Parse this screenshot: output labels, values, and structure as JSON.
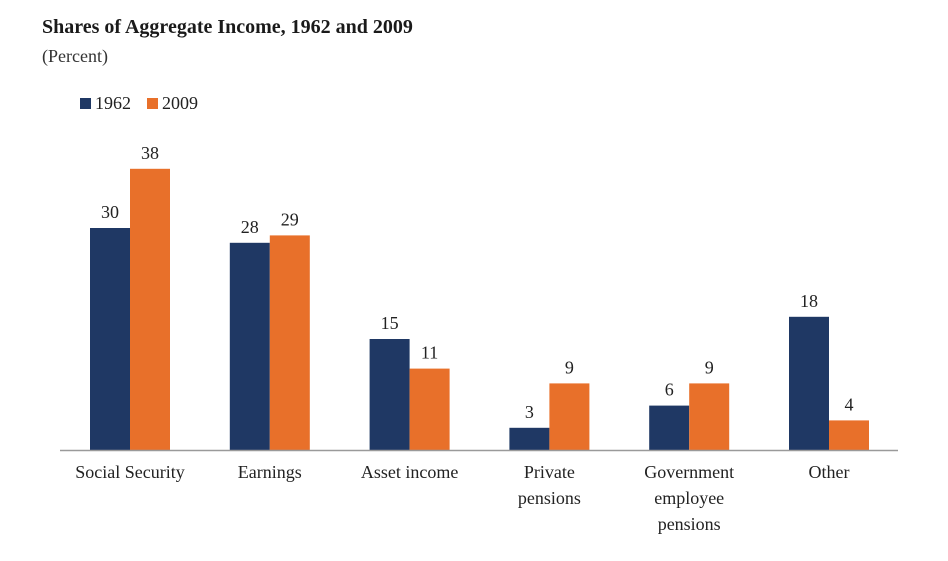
{
  "chart_data": {
    "type": "bar",
    "title": "Shares of Aggregate Income, 1962 and 2009",
    "subtitle": "(Percent)",
    "xlabel": "",
    "ylabel": "",
    "ylim": [
      0,
      40
    ],
    "grid": false,
    "legend_position": "top-left",
    "categories": [
      [
        "Social Security"
      ],
      [
        "Earnings"
      ],
      [
        "Asset income"
      ],
      [
        "Private",
        "pensions"
      ],
      [
        "Government",
        "employee",
        "pensions"
      ],
      [
        "Other"
      ]
    ],
    "series": [
      {
        "name": "1962",
        "color": "#1f3864",
        "values": [
          30,
          28,
          15,
          3,
          6,
          18
        ]
      },
      {
        "name": "2009",
        "color": "#e8702a",
        "values": [
          38,
          29,
          11,
          9,
          9,
          4
        ]
      }
    ]
  }
}
